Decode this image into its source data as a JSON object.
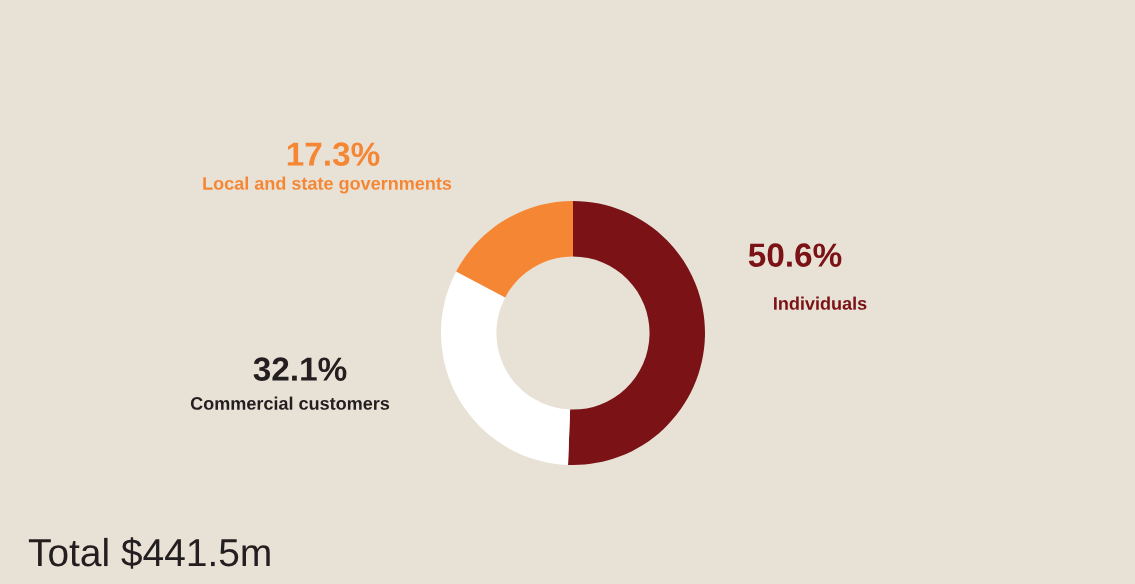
{
  "chart_data": {
    "type": "donut",
    "categories": [
      "Individuals",
      "Commercial customers",
      "Local and state governments"
    ],
    "values": [
      50.6,
      32.1,
      17.3
    ],
    "colors": [
      "#7a1216",
      "#ffffff",
      "#f58634"
    ],
    "value_labels": [
      "50.6%",
      "32.1%",
      "17.3%"
    ],
    "annotations": [
      "Total $441.5m"
    ],
    "legend": false
  }
}
